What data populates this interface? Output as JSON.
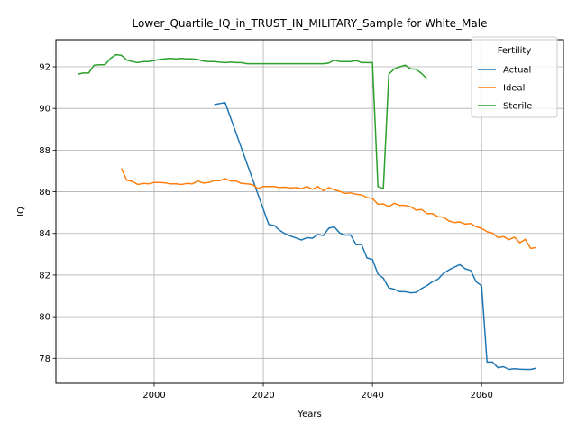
{
  "chart_data": {
    "type": "line",
    "title": "Lower_Quartile_IQ_in_TRUST_IN_MILITARY_Sample for White_Male",
    "xlabel": "Years",
    "ylabel": "IQ",
    "xlim": [
      1982,
      2075
    ],
    "ylim": [
      76.8,
      93.3
    ],
    "xticks": [
      2000,
      2020,
      2040,
      2060
    ],
    "yticks": [
      78,
      80,
      82,
      84,
      86,
      88,
      90,
      92
    ],
    "grid": true,
    "legend": {
      "title": "Fertility",
      "placement": "top-right"
    },
    "series": [
      {
        "name": "Actual",
        "color": "#1f77b4",
        "x": [
          2011,
          2013,
          2021,
          2022,
          2023,
          2024,
          2025,
          2026,
          2027,
          2028,
          2029,
          2030,
          2031,
          2032,
          2033,
          2034,
          2035,
          2036,
          2037,
          2038,
          2039,
          2040,
          2041,
          2042,
          2043,
          2044,
          2045,
          2046,
          2047,
          2048,
          2049,
          2050,
          2051,
          2052,
          2053,
          2054,
          2055,
          2056,
          2057,
          2058,
          2059,
          2060,
          2061,
          2062,
          2063,
          2064,
          2065,
          2066,
          2067,
          2068,
          2069,
          2070
        ],
        "y": [
          90.18,
          90.28,
          84.43,
          84.38,
          84.15,
          83.98,
          83.87,
          83.78,
          83.68,
          83.8,
          83.77,
          83.95,
          83.9,
          84.25,
          84.32,
          84.02,
          83.92,
          83.93,
          83.45,
          83.47,
          82.82,
          82.75,
          82.05,
          81.85,
          81.38,
          81.32,
          81.2,
          81.2,
          81.15,
          81.17,
          81.35,
          81.5,
          81.68,
          81.8,
          82.08,
          82.25,
          82.38,
          82.5,
          82.3,
          82.22,
          81.68,
          81.48,
          77.82,
          77.82,
          77.55,
          77.6,
          77.47,
          77.5,
          77.48,
          77.47,
          77.47,
          77.53
        ]
      },
      {
        "name": "Ideal",
        "color": "#ff7f0e",
        "x": [
          1994,
          1995,
          1996,
          1997,
          1998,
          1999,
          2000,
          2001,
          2002,
          2003,
          2004,
          2005,
          2006,
          2007,
          2008,
          2009,
          2010,
          2011,
          2012,
          2013,
          2014,
          2015,
          2016,
          2017,
          2018,
          2019,
          2020,
          2021,
          2022,
          2023,
          2024,
          2025,
          2026,
          2027,
          2028,
          2029,
          2030,
          2031,
          2032,
          2033,
          2034,
          2035,
          2036,
          2037,
          2038,
          2039,
          2040,
          2041,
          2042,
          2043,
          2044,
          2045,
          2046,
          2047,
          2048,
          2049,
          2050,
          2051,
          2052,
          2053,
          2054,
          2055,
          2056,
          2057,
          2058,
          2059,
          2060,
          2061,
          2062,
          2063,
          2064,
          2065,
          2066,
          2067,
          2068,
          2069,
          2070
        ],
        "y": [
          87.12,
          86.55,
          86.5,
          86.35,
          86.4,
          86.38,
          86.45,
          86.45,
          86.43,
          86.38,
          86.38,
          86.35,
          86.4,
          86.38,
          86.52,
          86.42,
          86.45,
          86.53,
          86.53,
          86.63,
          86.52,
          86.52,
          86.4,
          86.38,
          86.35,
          86.15,
          86.25,
          86.25,
          86.25,
          86.2,
          86.22,
          86.18,
          86.2,
          86.15,
          86.25,
          86.12,
          86.25,
          86.05,
          86.2,
          86.1,
          86.02,
          85.92,
          85.95,
          85.88,
          85.85,
          85.72,
          85.68,
          85.4,
          85.42,
          85.28,
          85.45,
          85.35,
          85.35,
          85.28,
          85.12,
          85.15,
          84.95,
          84.95,
          84.8,
          84.78,
          84.6,
          84.52,
          84.55,
          84.45,
          84.48,
          84.32,
          84.25,
          84.08,
          84.02,
          83.8,
          83.85,
          83.7,
          83.82,
          83.55,
          83.72,
          83.28,
          83.32
        ]
      },
      {
        "name": "Sterile",
        "color": "#2ca02c",
        "x": [
          1986,
          1987,
          1988,
          1989,
          1990,
          1991,
          1992,
          1993,
          1994,
          1995,
          1996,
          1997,
          1998,
          1999,
          2000,
          2001,
          2002,
          2003,
          2004,
          2005,
          2006,
          2007,
          2008,
          2009,
          2010,
          2011,
          2012,
          2013,
          2014,
          2015,
          2016,
          2017,
          2018,
          2019,
          2020,
          2021,
          2022,
          2023,
          2024,
          2025,
          2026,
          2027,
          2028,
          2029,
          2030,
          2031,
          2032,
          2033,
          2034,
          2035,
          2036,
          2037,
          2038,
          2039,
          2040,
          2041,
          2042,
          2043,
          2044,
          2045,
          2046,
          2047,
          2048,
          2049,
          2050
        ],
        "y": [
          91.65,
          91.7,
          91.7,
          92.08,
          92.1,
          92.1,
          92.4,
          92.58,
          92.55,
          92.32,
          92.25,
          92.2,
          92.25,
          92.25,
          92.3,
          92.35,
          92.38,
          92.4,
          92.38,
          92.4,
          92.38,
          92.38,
          92.35,
          92.28,
          92.25,
          92.25,
          92.22,
          92.2,
          92.22,
          92.2,
          92.2,
          92.15,
          92.15,
          92.15,
          92.15,
          92.15,
          92.15,
          92.15,
          92.15,
          92.15,
          92.15,
          92.15,
          92.15,
          92.15,
          92.15,
          92.15,
          92.18,
          92.32,
          92.25,
          92.25,
          92.25,
          92.3,
          92.2,
          92.2,
          92.2,
          86.25,
          86.15,
          91.65,
          91.9,
          92.0,
          92.08,
          91.9,
          91.88,
          91.68,
          91.42
        ]
      }
    ]
  }
}
